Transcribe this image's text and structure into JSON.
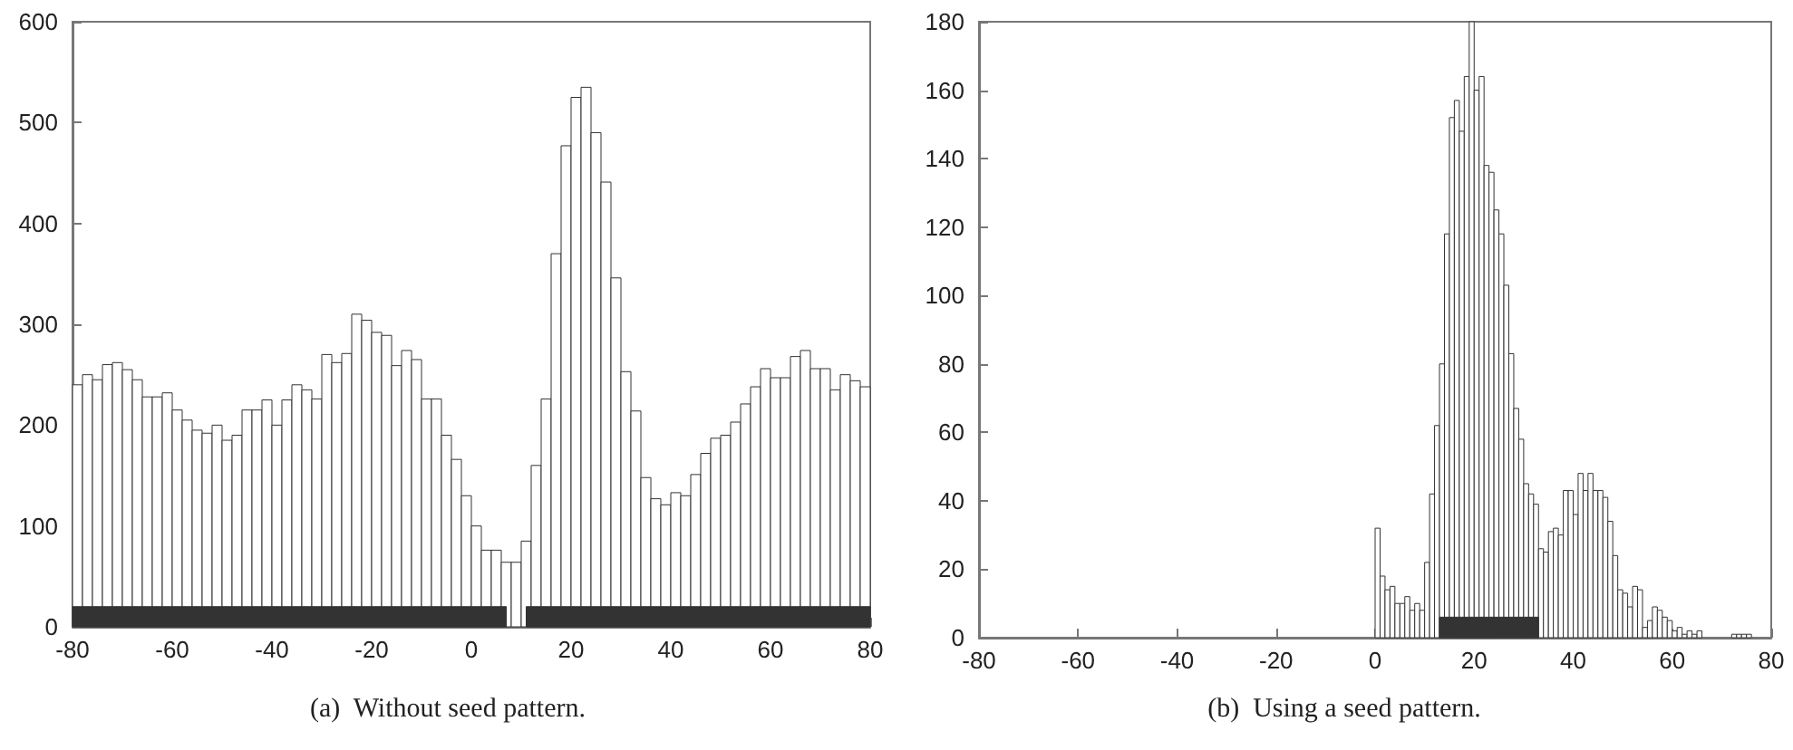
{
  "chart_data": [
    {
      "type": "histogram",
      "title": "(a)  Without seed pattern.",
      "xlim": [
        -80,
        80
      ],
      "xticks": [
        -80,
        -60,
        -40,
        -20,
        0,
        20,
        40,
        60,
        80
      ],
      "ylim": [
        0,
        600
      ],
      "yticks": [
        0,
        100,
        200,
        300,
        400,
        500,
        600
      ],
      "bins": [
        -80,
        -78,
        -76,
        -74,
        -72,
        -70,
        -68,
        -66,
        -64,
        -62,
        -60,
        -58,
        -56,
        -54,
        -52,
        -50,
        -48,
        -46,
        -44,
        -42,
        -40,
        -38,
        -36,
        -34,
        -32,
        -30,
        -28,
        -26,
        -24,
        -22,
        -20,
        -18,
        -16,
        -14,
        -12,
        -10,
        -8,
        -6,
        -4,
        -2,
        0,
        2,
        4,
        6,
        8,
        10,
        12,
        14,
        16,
        18,
        20,
        22,
        24,
        26,
        28,
        30,
        32,
        34,
        36,
        38,
        40,
        42,
        44,
        46,
        48,
        50,
        52,
        54,
        56,
        58,
        60,
        62,
        64,
        66,
        68,
        70,
        72,
        74,
        76,
        78,
        80
      ],
      "series": [
        {
          "color": "#ffffff",
          "values": [
            240,
            250,
            245,
            260,
            262,
            255,
            245,
            228,
            228,
            232,
            215,
            205,
            195,
            192,
            200,
            185,
            190,
            215,
            215,
            225,
            200,
            225,
            240,
            235,
            226,
            270,
            262,
            271,
            310,
            304,
            292,
            289,
            259,
            274,
            265,
            226,
            226,
            190,
            166,
            130,
            100,
            76,
            76,
            64,
            64,
            85,
            160,
            226,
            370,
            477,
            525,
            535,
            490,
            441,
            346,
            253,
            214,
            148,
            127,
            121,
            133,
            130,
            151,
            172,
            187,
            190,
            203,
            221,
            238,
            256,
            247,
            247,
            268,
            274,
            256,
            256,
            235,
            250,
            244,
            238
          ]
        },
        {
          "color": "#333333",
          "bins": [
            -80,
            7,
            11,
            80
          ],
          "values": [
            20,
            null,
            20
          ]
        }
      ]
    },
    {
      "type": "histogram",
      "title": "(b)  Using a seed pattern.",
      "xlim": [
        -80,
        80
      ],
      "xticks": [
        -80,
        -60,
        -40,
        -20,
        0,
        20,
        40,
        60,
        80
      ],
      "ylim": [
        0,
        180
      ],
      "yticks": [
        0,
        20,
        40,
        60,
        80,
        100,
        120,
        140,
        160,
        180
      ],
      "bins": [
        0,
        1,
        2,
        3,
        4,
        5,
        6,
        7,
        8,
        9,
        10,
        11,
        12,
        13,
        14,
        15,
        16,
        17,
        18,
        19,
        20,
        21,
        22,
        23,
        24,
        25,
        26,
        27,
        28,
        29,
        30,
        31,
        32,
        33,
        34,
        35,
        36,
        37,
        38,
        39,
        40,
        41,
        42,
        43,
        44,
        45,
        46,
        47,
        48,
        49,
        50,
        51,
        52,
        53,
        54,
        55,
        56,
        57,
        58,
        59,
        60,
        61,
        62,
        63,
        64,
        65,
        66
      ],
      "series": [
        {
          "color": "#ffffff",
          "values": [
            32,
            18,
            14,
            15,
            10,
            10,
            12,
            8,
            10,
            8,
            22,
            42,
            62,
            80,
            118,
            152,
            157,
            148,
            164,
            180,
            160,
            164,
            138,
            136,
            125,
            118,
            103,
            83,
            67,
            58,
            45,
            42,
            39,
            26,
            25,
            31,
            32,
            30,
            43,
            43,
            36,
            48,
            43,
            48,
            43,
            43,
            41,
            34,
            24,
            14,
            13,
            9,
            15,
            14,
            3,
            5,
            9,
            8,
            6,
            5,
            2,
            3,
            1,
            2,
            1,
            2
          ]
        },
        {
          "color": "#333333",
          "bins": [
            13,
            33
          ],
          "values": [
            6
          ]
        },
        {
          "color": "#ffffff",
          "bins": [
            72,
            73,
            74,
            75,
            76
          ],
          "values": [
            1,
            1,
            1,
            1
          ]
        }
      ]
    }
  ]
}
